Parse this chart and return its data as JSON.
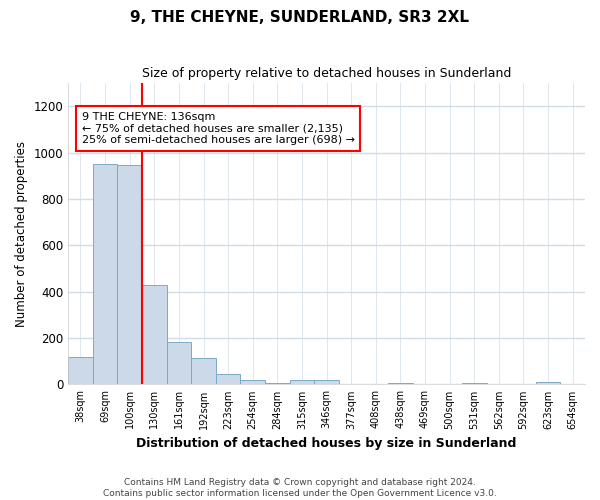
{
  "title": "9, THE CHEYNE, SUNDERLAND, SR3 2XL",
  "subtitle": "Size of property relative to detached houses in Sunderland",
  "xlabel": "Distribution of detached houses by size in Sunderland",
  "ylabel": "Number of detached properties",
  "footnote1": "Contains HM Land Registry data © Crown copyright and database right 2024.",
  "footnote2": "Contains public sector information licensed under the Open Government Licence v3.0.",
  "annotation_line1": "9 THE CHEYNE: 136sqm",
  "annotation_line2": "← 75% of detached houses are smaller (2,135)",
  "annotation_line3": "25% of semi-detached houses are larger (698) →",
  "bar_color": "#ccd9e8",
  "bar_edgecolor": "#7aaac8",
  "categories": [
    "38sqm",
    "69sqm",
    "100sqm",
    "130sqm",
    "161sqm",
    "192sqm",
    "223sqm",
    "254sqm",
    "284sqm",
    "315sqm",
    "346sqm",
    "377sqm",
    "408sqm",
    "438sqm",
    "469sqm",
    "500sqm",
    "531sqm",
    "562sqm",
    "592sqm",
    "623sqm",
    "654sqm"
  ],
  "values": [
    120,
    950,
    948,
    428,
    182,
    115,
    45,
    18,
    5,
    18,
    17,
    0,
    0,
    5,
    0,
    0,
    5,
    0,
    0,
    10,
    0
  ],
  "ylim": [
    0,
    1300
  ],
  "yticks": [
    0,
    200,
    400,
    600,
    800,
    1000,
    1200
  ],
  "redline_index": 3,
  "background_color": "#ffffff",
  "grid_color": "#d0dce8"
}
